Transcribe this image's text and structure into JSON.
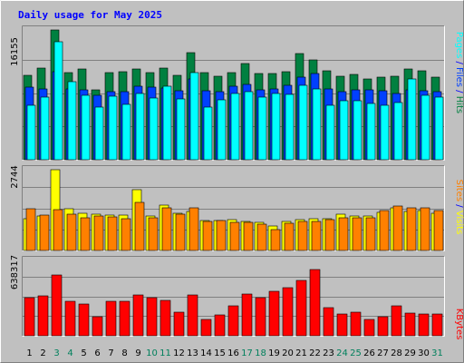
{
  "chart_data": {
    "type": "bar",
    "title": "Daily usage for May 2025",
    "categories": [
      "1",
      "2",
      "3",
      "4",
      "5",
      "6",
      "7",
      "8",
      "9",
      "10",
      "11",
      "12",
      "13",
      "14",
      "15",
      "16",
      "17",
      "18",
      "19",
      "20",
      "21",
      "22",
      "23",
      "24",
      "25",
      "26",
      "27",
      "28",
      "29",
      "30",
      "31"
    ],
    "weekend_days": [
      "3",
      "4",
      "10",
      "11",
      "17",
      "18",
      "24",
      "25",
      "31"
    ],
    "panels": [
      {
        "name": "hits_files_pages",
        "axis_label": "16155",
        "ylim": [
          0,
          16155
        ],
        "series": [
          {
            "name": "Hits",
            "color": "#008040",
            "values": [
              10500,
              11400,
              16155,
              10800,
              11300,
              8700,
              10900,
              11000,
              11300,
              10900,
              11400,
              10500,
              13300,
              10900,
              10400,
              10900,
              12000,
              10700,
              10700,
              11000,
              13200,
              12400,
              11100,
              10400,
              10600,
              10100,
              10300,
              10400,
              11300,
              11100,
              10300
            ]
          },
          {
            "name": "Files",
            "color": "#0040ff",
            "values": [
              9000,
              8800,
              11000,
              8800,
              8700,
              8000,
              8500,
              8500,
              9200,
              9000,
              8900,
              8600,
              10000,
              8600,
              8500,
              9100,
              9400,
              8700,
              8800,
              9300,
              10300,
              10700,
              8800,
              8500,
              8700,
              8700,
              8600,
              8200,
              8700,
              8600,
              8500
            ]
          },
          {
            "name": "Pages",
            "color": "#00ffff",
            "values": [
              6800,
              7800,
              14700,
              9700,
              8000,
              6600,
              7900,
              6900,
              8200,
              7700,
              9200,
              7600,
              10900,
              6600,
              7400,
              8200,
              8500,
              7800,
              8300,
              8100,
              9300,
              8800,
              6800,
              7300,
              7300,
              7000,
              6800,
              7100,
              10100,
              8000,
              7800
            ]
          }
        ]
      },
      {
        "name": "visits_sites",
        "axis_label": "2744",
        "ylim": [
          0,
          2744
        ],
        "series": [
          {
            "name": "Visits",
            "color": "#ffff00",
            "values": [
              1080,
              1180,
              2744,
              1420,
              1260,
              1230,
              1200,
              1210,
              2060,
              1180,
              1530,
              1260,
              1320,
              1030,
              1020,
              1040,
              990,
              960,
              820,
              980,
              1050,
              1080,
              1090,
              1230,
              1180,
              1160,
              1310,
              1440,
              1340,
              1370,
              1250
            ]
          },
          {
            "name": "Sites",
            "color": "#ff8000",
            "values": [
              1420,
              1190,
              1380,
              1220,
              1110,
              1180,
              1150,
              1080,
              1620,
              1120,
              1460,
              1240,
              1460,
              1000,
              1010,
              950,
              970,
              890,
              720,
              940,
              980,
              1000,
              1050,
              1120,
              1120,
              1120,
              1350,
              1510,
              1440,
              1460,
              1350
            ]
          }
        ]
      },
      {
        "name": "kbytes",
        "axis_label": "638317",
        "ylim": [
          0,
          638317
        ],
        "series": [
          {
            "name": "KBytes",
            "color": "#ff0000",
            "values": [
              322000,
              341000,
              513000,
              290000,
              269000,
              165000,
              290000,
              290000,
              347000,
              320000,
              299000,
              203000,
              347000,
              141000,
              176000,
              252000,
              357000,
              320000,
              376000,
              407000,
              466000,
              559000,
              241000,
              185000,
              199000,
              136000,
              165000,
              251000,
              190000,
              182000,
              182000
            ]
          }
        ]
      }
    ],
    "right_labels": [
      {
        "text": "Hits",
        "color": "#008040",
        "panel": 0
      },
      {
        "text": "Files",
        "color": "#0040ff",
        "panel": 0
      },
      {
        "text": "Pages",
        "color": "#00ffff",
        "panel": 0
      },
      {
        "text": "Visits",
        "color": "#ffff00",
        "panel": 1
      },
      {
        "text": "Sites",
        "color": "#ff8000",
        "panel": 1
      },
      {
        "text": "KBytes",
        "color": "#ff0000",
        "panel": 2
      }
    ],
    "colors": {
      "background": "#c0c0c0",
      "title": "#0000ff",
      "label": "#000000",
      "weekend_label": "#00805c",
      "separator": "#0000ff",
      "gridline": "#808080"
    }
  }
}
